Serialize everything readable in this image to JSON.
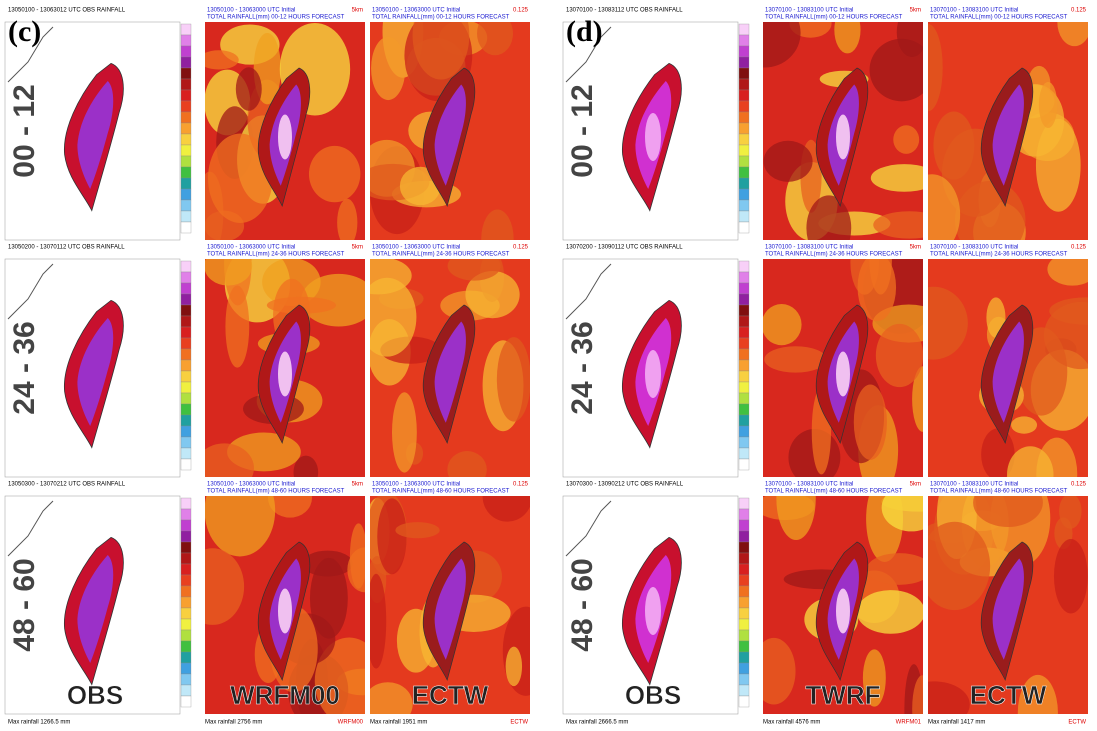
{
  "panels": [
    {
      "label": "(c)",
      "columns": [
        "OBS",
        "WRFM00",
        "ECTW"
      ],
      "rows": [
        {
          "label": "00 - 12",
          "obs_header": "13050100 - 13063012 UTC OBS RAINFALL",
          "model_header": "13050100 - 13063000 UTC Initial",
          "model_res": "5km",
          "model_subheader": "TOTAL RAINFALL(mm) 00-12 HOURS FORECAST",
          "ectw_header": "13050100 - 13063000 UTC Initial",
          "ectw_res": "0.125",
          "ectw_subheader": "TOTAL RAINFALL(mm) 00-12 HOURS FORECAST"
        },
        {
          "label": "24 - 36",
          "obs_header": "13050200 - 13070112 UTC OBS RAINFALL",
          "model_header": "13050100 - 13063000 UTC Initial",
          "model_res": "5km",
          "model_subheader": "TOTAL RAINFALL(mm) 24-36 HOURS FORECAST",
          "ectw_header": "13050100 - 13063000 UTC Initial",
          "ectw_res": "0.125",
          "ectw_subheader": "TOTAL RAINFALL(mm) 24-36 HOURS FORECAST"
        },
        {
          "label": "48 - 60",
          "obs_header": "13050300 - 13070212 UTC OBS RAINFALL",
          "model_header": "13050100 - 13063000 UTC Initial",
          "model_res": "5km",
          "model_subheader": "TOTAL RAINFALL(mm) 48-60 HOURS FORECAST",
          "ectw_header": "13050100 - 13063000 UTC Initial",
          "ectw_res": "0.125",
          "ectw_subheader": "TOTAL RAINFALL(mm) 48-60 HOURS FORECAST"
        }
      ],
      "footers": [
        {
          "text": "Max rainfall 1266.5 mm"
        },
        {
          "text": "Max rainfall 2756 mm",
          "tag": "WRFM00"
        },
        {
          "text": "Max rainfall 1951 mm",
          "tag": "ECTW"
        }
      ]
    },
    {
      "label": "(d)",
      "columns": [
        "OBS",
        "TWRF",
        "ECTW"
      ],
      "rows": [
        {
          "label": "00 - 12",
          "obs_header": "13070100 - 13083112 UTC OBS RAINFALL",
          "model_header": "13070100 - 13083100 UTC Initial",
          "model_res": "5km",
          "model_subheader": "TOTAL RAINFALL(mm) 00-12 HOURS FORECAST",
          "ectw_header": "13070100 - 13083100 UTC Initial",
          "ectw_res": "0.125",
          "ectw_subheader": "TOTAL RAINFALL(mm) 00-12 HOURS FORECAST"
        },
        {
          "label": "24 - 36",
          "obs_header": "13070200 - 13090112 UTC OBS RAINFALL",
          "model_header": "13070100 - 13083100 UTC Initial",
          "model_res": "5km",
          "model_subheader": "TOTAL RAINFALL(mm) 24-36 HOURS FORECAST",
          "ectw_header": "13070100 - 13083100 UTC Initial",
          "ectw_res": "0.125",
          "ectw_subheader": "TOTAL RAINFALL(mm) 24-36 HOURS FORECAST"
        },
        {
          "label": "48 - 60",
          "obs_header": "13070300 - 13090212 UTC OBS RAINFALL",
          "model_header": "13070100 - 13083100 UTC Initial",
          "model_res": "5km",
          "model_subheader": "TOTAL RAINFALL(mm) 48-60 HOURS FORECAST",
          "ectw_header": "13070100 - 13083100 UTC Initial",
          "ectw_res": "0.125",
          "ectw_subheader": "TOTAL RAINFALL(mm) 48-60 HOURS FORECAST"
        }
      ],
      "footers": [
        {
          "text": "Max rainfall 2666.5 mm"
        },
        {
          "text": "Max rainfall 4576 mm",
          "tag": "WRFM01"
        },
        {
          "text": "Max rainfall 1417 mm",
          "tag": "ECTW"
        }
      ]
    }
  ]
}
